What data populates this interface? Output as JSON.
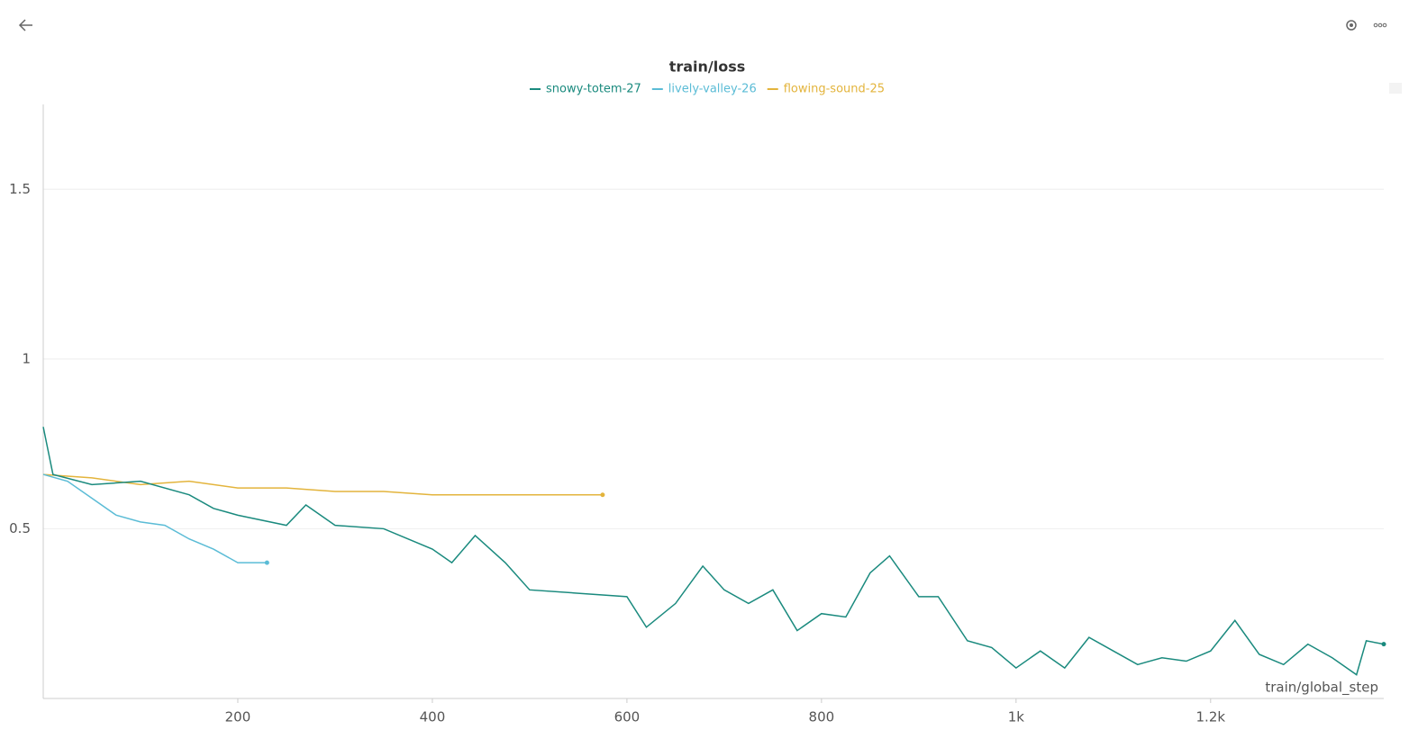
{
  "chart_data": {
    "type": "line",
    "title": "train/loss",
    "xlabel": "train/global_step",
    "xlim": [
      0,
      1378
    ],
    "ylim": [
      0,
      1.75
    ],
    "xticks": [
      200,
      400,
      600,
      800,
      {
        "value": 1000,
        "label": "1k"
      },
      {
        "value": 1200,
        "label": "1.2k"
      }
    ],
    "yticks": [
      0.5,
      1,
      1.5
    ],
    "grid": true,
    "series": [
      {
        "name": "snowy-totem-27",
        "color": "#1a8a7e",
        "x": [
          0,
          10,
          50,
          100,
          150,
          175,
          200,
          250,
          270,
          300,
          350,
          400,
          420,
          444,
          475,
          500,
          550,
          600,
          620,
          650,
          678,
          700,
          725,
          750,
          775,
          800,
          825,
          850,
          870,
          900,
          920,
          950,
          975,
          1000,
          1025,
          1050,
          1075,
          1100,
          1125,
          1150,
          1175,
          1200,
          1225,
          1250,
          1275,
          1300,
          1325,
          1350,
          1360,
          1378
        ],
        "values": [
          0.8,
          0.66,
          0.63,
          0.64,
          0.6,
          0.56,
          0.54,
          0.51,
          0.57,
          0.51,
          0.5,
          0.44,
          0.4,
          0.48,
          0.4,
          0.32,
          0.31,
          0.3,
          0.21,
          0.28,
          0.39,
          0.32,
          0.28,
          0.32,
          0.2,
          0.25,
          0.24,
          0.37,
          0.42,
          0.3,
          0.3,
          0.17,
          0.15,
          0.09,
          0.14,
          0.09,
          0.18,
          0.14,
          0.1,
          0.12,
          0.11,
          0.14,
          0.23,
          0.13,
          0.1,
          0.16,
          0.12,
          0.07,
          0.17,
          0.16
        ]
      },
      {
        "name": "lively-valley-26",
        "color": "#5bbcd6",
        "x": [
          0,
          25,
          50,
          75,
          100,
          125,
          150,
          175,
          200,
          215,
          230
        ],
        "values": [
          0.66,
          0.64,
          0.59,
          0.54,
          0.52,
          0.51,
          0.47,
          0.44,
          0.4,
          0.4,
          0.4
        ]
      },
      {
        "name": "flowing-sound-25",
        "color": "#e3b43c",
        "x": [
          0,
          50,
          100,
          150,
          200,
          250,
          300,
          350,
          400,
          450,
          500,
          550,
          575
        ],
        "values": [
          0.66,
          0.65,
          0.63,
          0.64,
          0.62,
          0.62,
          0.61,
          0.61,
          0.6,
          0.6,
          0.6,
          0.6,
          0.6
        ]
      }
    ]
  }
}
